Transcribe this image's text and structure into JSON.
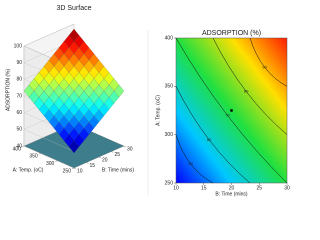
{
  "chart_data": [
    {
      "type": "surface3d",
      "title": "3D Surface",
      "zlabel": "ADSORPTION (%)",
      "xlabel": "B: Time (mins)",
      "ylabel": "A: Temp. (oC)",
      "xlim": [
        10,
        30
      ],
      "xticks": [
        10,
        15,
        20,
        25,
        30
      ],
      "ylim": [
        250,
        400
      ],
      "yticks": [
        250,
        300,
        350,
        400
      ],
      "zlim": [
        40,
        100
      ],
      "zticks": [
        40,
        50,
        60,
        70,
        80,
        90,
        100
      ]
    },
    {
      "type": "contour",
      "title": "ADSORPTION (%)",
      "xlabel": "B: Time (mins)",
      "ylabel": "A: Temp. (oC)",
      "xlim": [
        10,
        30
      ],
      "xticks": [
        10,
        15,
        20,
        25,
        30
      ],
      "ylim": [
        250,
        400
      ],
      "yticks": [
        250,
        300,
        350,
        400
      ],
      "zlim": [
        40,
        100
      ],
      "levels": [
        50,
        60,
        70,
        80,
        90
      ],
      "points": [
        {
          "x": 20,
          "y": 325
        }
      ]
    }
  ]
}
